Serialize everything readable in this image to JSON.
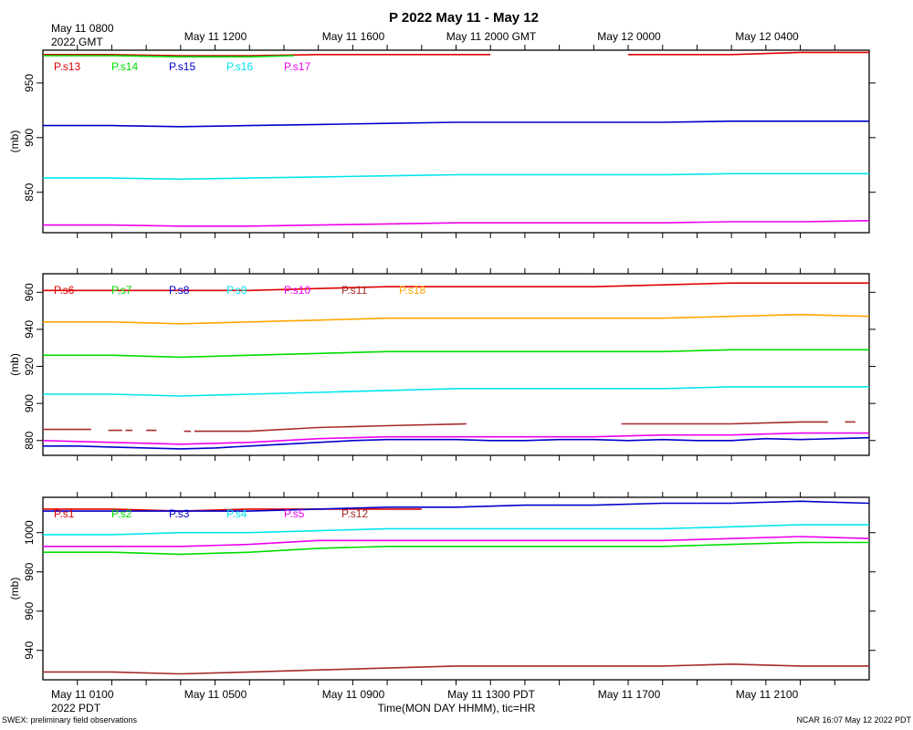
{
  "title": "P 2022 May 11 - May 12",
  "top_axis": {
    "first_label": [
      "May 11 0800",
      "2022 GMT"
    ],
    "labels": [
      "May 11 1200",
      "May 11 1600",
      "May 11 2000 GMT",
      "May 12 0000",
      "May 12 0400"
    ]
  },
  "bottom_axis": {
    "first_label": [
      "May 11 0100",
      "2022 PDT"
    ],
    "labels": [
      "May 11 0500",
      "May 11 0900",
      "May 11 1300 PDT",
      "May 11 1700",
      "May 11 2100"
    ],
    "xlabel": "Time(MON DAY HHMM), tic=HR"
  },
  "footer": {
    "left": "SWEX: preliminary field observations",
    "right": "NCAR 16:07 May 12 2022 PDT"
  },
  "colors": {
    "red": "#e00000",
    "green": "#00dd00",
    "blue": "#0000cc",
    "cyan": "#00e5ee",
    "magenta": "#ee00ee",
    "brown": "#a52a2a",
    "orange": "#ffa500"
  },
  "chart_data": [
    {
      "type": "line",
      "ylabel": "(mb)",
      "ylim": [
        813,
        980
      ],
      "yticks": [
        950,
        900,
        850
      ],
      "x_range_hours": [
        0,
        24
      ],
      "legend": [
        "P.s13",
        "P.s14",
        "P.s15",
        "P.s16",
        "P.s17"
      ],
      "series": [
        {
          "name": "P.s13",
          "color": "red",
          "segments": [
            {
              "x": [
                0,
                2,
                4,
                6,
                8,
                10,
                12,
                13
              ],
              "y": [
                976,
                976,
                975,
                975,
                976,
                976,
                976,
                976
              ]
            },
            {
              "x": [
                17,
                18,
                20,
                22,
                24
              ],
              "y": [
                976,
                976,
                976,
                978,
                978
              ]
            }
          ]
        },
        {
          "name": "P.s14",
          "color": "green",
          "segments": [
            {
              "x": [
                0,
                2,
                4,
                6,
                7.3
              ],
              "y": [
                975,
                975,
                974,
                974,
                975
              ]
            }
          ]
        },
        {
          "name": "P.s15",
          "color": "blue",
          "segments": [
            {
              "x": [
                0,
                2,
                4,
                6,
                8,
                10,
                12,
                14,
                16,
                18,
                20,
                22,
                24
              ],
              "y": [
                911,
                911,
                910,
                911,
                912,
                913,
                914,
                914,
                914,
                914,
                915,
                915,
                915
              ]
            }
          ]
        },
        {
          "name": "P.s16",
          "color": "cyan",
          "segments": [
            {
              "x": [
                0,
                2,
                4,
                6,
                8,
                10,
                12,
                14,
                16,
                18,
                20,
                22,
                24
              ],
              "y": [
                863,
                863,
                862,
                863,
                864,
                865,
                866,
                866,
                866,
                866,
                867,
                867,
                867
              ]
            }
          ]
        },
        {
          "name": "P.s17",
          "color": "magenta",
          "segments": [
            {
              "x": [
                0,
                2,
                4,
                6,
                8,
                10,
                12,
                14,
                16,
                18,
                20,
                22,
                24
              ],
              "y": [
                820,
                820,
                819,
                819,
                820,
                821,
                822,
                822,
                822,
                822,
                823,
                823,
                824
              ]
            }
          ]
        }
      ]
    },
    {
      "type": "line",
      "ylabel": "(mb)",
      "ylim": [
        872,
        970
      ],
      "yticks": [
        960,
        940,
        920,
        900,
        880
      ],
      "x_range_hours": [
        0,
        24
      ],
      "legend": [
        "P.s6",
        "P.s7",
        "P.s8",
        "P.s9",
        "P.s10",
        "P.s11",
        "P.s18"
      ],
      "series": [
        {
          "name": "P.s6",
          "color": "red",
          "segments": [
            {
              "x": [
                0,
                2,
                4,
                6,
                8,
                10,
                12,
                14,
                16,
                18,
                20,
                22,
                24
              ],
              "y": [
                961,
                961,
                961,
                961,
                962,
                963,
                963,
                963,
                963,
                964,
                965,
                965,
                965
              ]
            }
          ]
        },
        {
          "name": "P.s7",
          "color": "green",
          "segments": [
            {
              "x": [
                0,
                2,
                4,
                6,
                8,
                10,
                12,
                14,
                16,
                18,
                20,
                22,
                24
              ],
              "y": [
                926,
                926,
                925,
                926,
                927,
                928,
                928,
                928,
                928,
                928,
                929,
                929,
                929
              ]
            }
          ]
        },
        {
          "name": "P.s8",
          "color": "blue",
          "segments": [
            {
              "x": [
                0,
                1,
                2,
                3,
                4,
                5,
                6,
                7,
                8,
                9,
                10,
                11,
                12,
                13,
                14,
                15,
                16,
                17,
                18,
                19,
                20,
                21,
                22,
                23,
                24
              ],
              "y": [
                877,
                877,
                876.5,
                876,
                875.5,
                876,
                877,
                878,
                879,
                880,
                880.5,
                880.5,
                880.5,
                880,
                880,
                880.5,
                880.5,
                880,
                880.5,
                880,
                880,
                881,
                880.5,
                881,
                881.5
              ]
            }
          ]
        },
        {
          "name": "P.s9",
          "color": "cyan",
          "segments": [
            {
              "x": [
                0,
                2,
                4,
                6,
                8,
                10,
                12,
                14,
                16,
                18,
                20,
                22,
                24
              ],
              "y": [
                905,
                905,
                904,
                905,
                906,
                907,
                908,
                908,
                908,
                908,
                909,
                909,
                909
              ]
            }
          ]
        },
        {
          "name": "P.s10",
          "color": "magenta",
          "segments": [
            {
              "x": [
                0,
                2,
                4,
                6,
                8,
                10,
                12,
                14,
                16,
                18,
                20,
                22,
                24
              ],
              "y": [
                880,
                879,
                878,
                879,
                881,
                882,
                882,
                882,
                882,
                883,
                883,
                884,
                884
              ]
            }
          ]
        },
        {
          "name": "P.s11",
          "color": "brown",
          "segments": [
            {
              "x": [
                0,
                1.4
              ],
              "y": [
                886,
                886
              ]
            },
            {
              "x": [
                1.9,
                2.3
              ],
              "y": [
                885.5,
                885.5
              ]
            },
            {
              "x": [
                2.4,
                2.6
              ],
              "y": [
                885.5,
                885.5
              ]
            },
            {
              "x": [
                3,
                3.3
              ],
              "y": [
                885.5,
                885.5
              ]
            },
            {
              "x": [
                4.1,
                4.3
              ],
              "y": [
                885,
                885
              ]
            },
            {
              "x": [
                4.4,
                6,
                8,
                10,
                12.3
              ],
              "y": [
                885,
                885,
                887,
                888,
                889
              ]
            },
            {
              "x": [
                16.8,
                18,
                20,
                22,
                22.8
              ],
              "y": [
                889,
                889,
                889,
                890,
                890
              ]
            },
            {
              "x": [
                23.3,
                23.6
              ],
              "y": [
                890,
                890
              ]
            }
          ]
        },
        {
          "name": "P.s18",
          "color": "orange",
          "segments": [
            {
              "x": [
                0,
                2,
                4,
                6,
                8,
                10,
                12,
                14,
                16,
                18,
                20,
                22,
                24
              ],
              "y": [
                944,
                944,
                943,
                944,
                945,
                946,
                946,
                946,
                946,
                946,
                947,
                948,
                947
              ]
            }
          ]
        }
      ]
    },
    {
      "type": "line",
      "ylabel": "(mb)",
      "ylim": [
        925,
        1018
      ],
      "yticks": [
        1000,
        980,
        960,
        940
      ],
      "x_range_hours": [
        0,
        24
      ],
      "legend": [
        "P.s1",
        "P.s2",
        "P.s3",
        "P.s4",
        "P.s5",
        "P.s12"
      ],
      "series": [
        {
          "name": "P.s1",
          "color": "red",
          "segments": [
            {
              "x": [
                0,
                2,
                4,
                6,
                8,
                10,
                11
              ],
              "y": [
                1012,
                1012,
                1011,
                1012,
                1012,
                1012,
                1012
              ]
            }
          ]
        },
        {
          "name": "P.s2",
          "color": "green",
          "segments": [
            {
              "x": [
                0,
                2,
                4,
                6,
                8,
                10,
                12,
                14,
                16,
                18,
                20,
                22,
                24
              ],
              "y": [
                990,
                990,
                989,
                990,
                992,
                993,
                993,
                993,
                993,
                993,
                994,
                995,
                995
              ]
            }
          ]
        },
        {
          "name": "P.s3",
          "color": "blue",
          "segments": [
            {
              "x": [
                0,
                2,
                4,
                6,
                8,
                10,
                12,
                14,
                16,
                18,
                20,
                22,
                24
              ],
              "y": [
                1011,
                1011,
                1011,
                1011,
                1012,
                1013,
                1013,
                1014,
                1014,
                1015,
                1015,
                1016,
                1015
              ]
            }
          ]
        },
        {
          "name": "P.s4",
          "color": "cyan",
          "segments": [
            {
              "x": [
                0,
                2,
                4,
                6,
                8,
                10,
                12,
                14,
                16,
                18,
                20,
                22,
                24
              ],
              "y": [
                999,
                999,
                1000,
                1000,
                1001,
                1002,
                1002,
                1002,
                1002,
                1002,
                1003,
                1004,
                1004
              ]
            }
          ]
        },
        {
          "name": "P.s5",
          "color": "magenta",
          "segments": [
            {
              "x": [
                0,
                2,
                4,
                6,
                8,
                10,
                12,
                14,
                16,
                18,
                20,
                22,
                24
              ],
              "y": [
                993,
                993,
                993,
                994,
                996,
                996,
                996,
                996,
                996,
                996,
                997,
                998,
                997
              ]
            }
          ]
        },
        {
          "name": "P.s12",
          "color": "brown",
          "segments": [
            {
              "x": [
                0,
                2,
                4,
                6,
                8,
                10,
                12,
                14,
                16,
                18,
                20,
                22,
                24
              ],
              "y": [
                929,
                929,
                928,
                929,
                930,
                931,
                932,
                932,
                932,
                932,
                933,
                932,
                932
              ]
            }
          ]
        }
      ]
    }
  ]
}
